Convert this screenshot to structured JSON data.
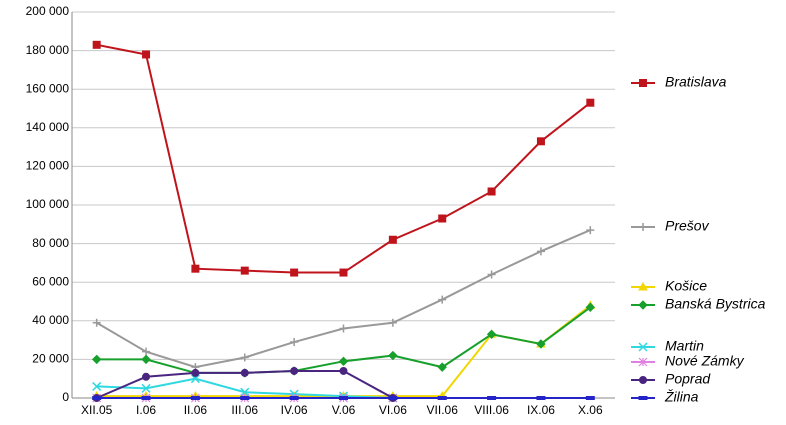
{
  "chart_data": {
    "type": "line",
    "categories": [
      "XII.05",
      "I.06",
      "II.06",
      "III.06",
      "IV.06",
      "V.06",
      "VI.06",
      "VII.06",
      "VIII.06",
      "IX.06",
      "X.06"
    ],
    "ylim": [
      0,
      200000
    ],
    "yticks": [
      {
        "value": 0,
        "label": "0"
      },
      {
        "value": 20000,
        "label": "20 000"
      },
      {
        "value": 40000,
        "label": "40 000"
      },
      {
        "value": 60000,
        "label": "60 000"
      },
      {
        "value": 80000,
        "label": "80 000"
      },
      {
        "value": 100000,
        "label": "100 000"
      },
      {
        "value": 120000,
        "label": "120 000"
      },
      {
        "value": 140000,
        "label": "140 000"
      },
      {
        "value": 160000,
        "label": "160 000"
      },
      {
        "value": 180000,
        "label": "180 000"
      },
      {
        "value": 200000,
        "label": "200 000"
      }
    ],
    "grid": true,
    "series": [
      {
        "name": "Bratislava",
        "color": "#c0141c",
        "values": [
          183000,
          178000,
          67000,
          66000,
          65000,
          65000,
          82000,
          93000,
          107000,
          133000,
          153000
        ]
      },
      {
        "name": "Prešov",
        "color": "#999999",
        "values": [
          39000,
          24000,
          16000,
          21000,
          29000,
          36000,
          39000,
          51000,
          64000,
          76000,
          87000
        ]
      },
      {
        "name": "Košice",
        "color": "#f2d600",
        "values": [
          1000,
          1000,
          1000,
          1000,
          1000,
          1000,
          1000,
          1000,
          33000,
          28000,
          48000
        ]
      },
      {
        "name": "Banská Bystrica",
        "color": "#17a02c",
        "values": [
          20000,
          20000,
          13000,
          13000,
          14000,
          19000,
          22000,
          16000,
          33000,
          28000,
          47000
        ]
      },
      {
        "name": "Martin",
        "color": "#30d8e0",
        "values": [
          6000,
          5000,
          10000,
          3000,
          2000,
          1000,
          0,
          null,
          null,
          null,
          null
        ]
      },
      {
        "name": "Nové Zámky",
        "color": "#e080e0",
        "values": [
          0,
          0,
          0,
          0,
          0,
          0,
          0,
          null,
          null,
          null,
          null
        ]
      },
      {
        "name": "Poprad",
        "color": "#4a2580",
        "values": [
          0,
          11000,
          13000,
          13000,
          14000,
          14000,
          0,
          null,
          null,
          null,
          null
        ]
      },
      {
        "name": "Žilina",
        "color": "#2424c8",
        "values": [
          0,
          0,
          0,
          0,
          0,
          0,
          0,
          0,
          0,
          0,
          0
        ]
      }
    ]
  }
}
